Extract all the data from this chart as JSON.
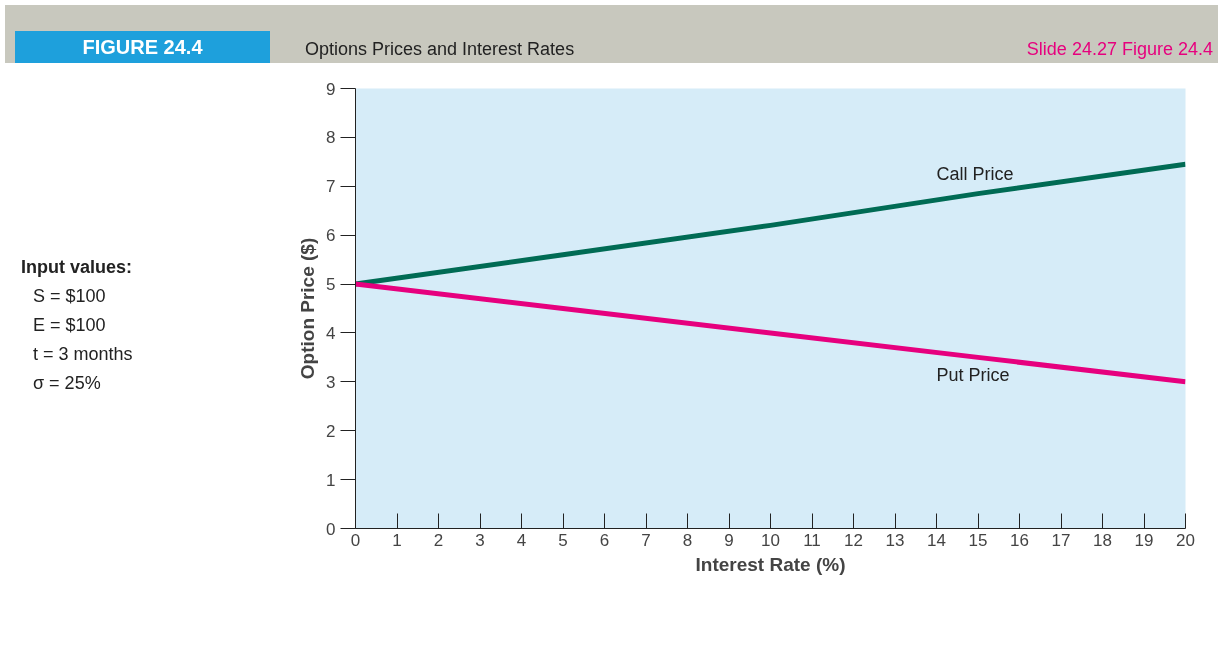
{
  "chart_data": {
    "type": "line",
    "title": "Options Prices and Interest Rates",
    "xlabel": "Interest Rate (%)",
    "ylabel": "Option Price ($)",
    "annotations": [
      "FIGURE 24.4",
      "Slide 24.27 Figure 24.4",
      "Input values:",
      "S = $100",
      "E = $100",
      "t = 3 months",
      "σ = 25%"
    ],
    "x": [
      0,
      5,
      10,
      15,
      20
    ],
    "series": [
      {
        "name": "Call Price",
        "color": "#006b54",
        "values": [
          5,
          5.6,
          6.2,
          6.85,
          7.45
        ]
      },
      {
        "name": "Put Price",
        "color": "#e6007e",
        "values": [
          5,
          4.5,
          4.0,
          3.5,
          3.0
        ]
      }
    ],
    "xlim": [
      0,
      20
    ],
    "xticks": [
      0,
      1,
      2,
      3,
      4,
      5,
      6,
      7,
      8,
      9,
      10,
      11,
      12,
      13,
      14,
      15,
      16,
      17,
      18,
      19,
      20
    ],
    "ylim": [
      0,
      9
    ],
    "yticks": [
      0,
      1,
      2,
      3,
      4,
      5,
      6,
      7,
      8,
      9
    ],
    "grid": false,
    "marker": "none",
    "line_style": "solid"
  }
}
